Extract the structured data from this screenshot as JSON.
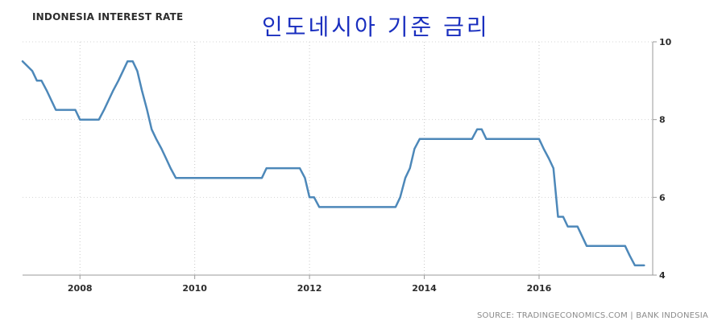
{
  "chart_data": {
    "type": "line",
    "title": "INDONESIA INTEREST RATE",
    "subtitle": "인도네시아 기준 금리",
    "source": "SOURCE: TRADINGECONOMICS.COM | BANK INDONESIA",
    "xlabel": "",
    "ylabel": "",
    "xlim": [
      2007.0,
      2017.98
    ],
    "ylim": [
      4,
      10
    ],
    "x_ticks": [
      {
        "value": 2008,
        "label": "2008"
      },
      {
        "value": 2010,
        "label": "2010"
      },
      {
        "value": 2012,
        "label": "2012"
      },
      {
        "value": 2014,
        "label": "2014"
      },
      {
        "value": 2016,
        "label": "2016"
      }
    ],
    "y_ticks": [
      {
        "value": 4,
        "label": "4"
      },
      {
        "value": 6,
        "label": "6"
      },
      {
        "value": 8,
        "label": "8"
      },
      {
        "value": 10,
        "label": "10"
      }
    ],
    "grid": true,
    "grid_style": "dotted vertical",
    "line_color": "#4d88b9",
    "series": [
      {
        "x": [
          2007.0,
          2007.17,
          2007.25,
          2007.33,
          2007.42,
          2007.5,
          2007.58,
          2007.67,
          2007.75,
          2007.92,
          2008.0,
          2008.08,
          2008.17,
          2008.25,
          2008.33,
          2008.42,
          2008.5,
          2008.58,
          2008.67,
          2008.75,
          2008.83,
          2008.92,
          2009.0,
          2009.08,
          2009.17,
          2009.25,
          2009.33,
          2009.42,
          2009.5,
          2009.58,
          2009.67,
          2009.75,
          2009.83,
          2010.0,
          2010.17,
          2010.33,
          2010.5,
          2010.67,
          2010.83,
          2011.0,
          2011.08,
          2011.17,
          2011.25,
          2011.33,
          2011.42,
          2011.5,
          2011.58,
          2011.67,
          2011.75,
          2011.83,
          2011.92,
          2012.0,
          2012.08,
          2012.17,
          2012.33,
          2012.5,
          2012.67,
          2012.83,
          2013.0,
          2013.17,
          2013.33,
          2013.42,
          2013.5,
          2013.58,
          2013.67,
          2013.75,
          2013.83,
          2013.92,
          2014.0,
          2014.17,
          2014.33,
          2014.5,
          2014.67,
          2014.83,
          2014.92,
          2015.0,
          2015.08,
          2015.17,
          2015.33,
          2015.5,
          2015.67,
          2015.83,
          2016.0,
          2016.08,
          2016.17,
          2016.25,
          2016.33,
          2016.42,
          2016.5,
          2016.58,
          2016.67,
          2016.75,
          2016.83,
          2016.92,
          2017.0,
          2017.17,
          2017.33,
          2017.5,
          2017.58,
          2017.67,
          2017.75,
          2017.83
        ],
        "y": [
          9.5,
          9.25,
          9.0,
          9.0,
          8.75,
          8.5,
          8.25,
          8.25,
          8.25,
          8.25,
          8.0,
          8.0,
          8.0,
          8.0,
          8.0,
          8.25,
          8.5,
          8.75,
          9.0,
          9.25,
          9.5,
          9.5,
          9.25,
          8.75,
          8.25,
          7.75,
          7.5,
          7.25,
          7.0,
          6.75,
          6.5,
          6.5,
          6.5,
          6.5,
          6.5,
          6.5,
          6.5,
          6.5,
          6.5,
          6.5,
          6.5,
          6.5,
          6.75,
          6.75,
          6.75,
          6.75,
          6.75,
          6.75,
          6.75,
          6.75,
          6.5,
          6.0,
          6.0,
          5.75,
          5.75,
          5.75,
          5.75,
          5.75,
          5.75,
          5.75,
          5.75,
          5.75,
          5.75,
          6.0,
          6.5,
          6.75,
          7.25,
          7.5,
          7.5,
          7.5,
          7.5,
          7.5,
          7.5,
          7.5,
          7.75,
          7.75,
          7.5,
          7.5,
          7.5,
          7.5,
          7.5,
          7.5,
          7.5,
          7.25,
          7.0,
          6.75,
          5.5,
          5.5,
          5.25,
          5.25,
          5.25,
          5.0,
          4.75,
          4.75,
          4.75,
          4.75,
          4.75,
          4.75,
          4.5,
          4.25,
          4.25,
          4.25
        ]
      }
    ]
  }
}
